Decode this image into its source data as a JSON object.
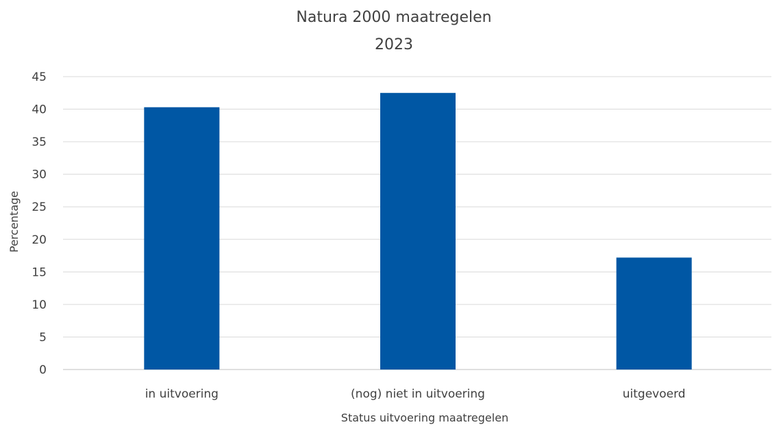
{
  "chart_data": {
    "type": "bar",
    "title": "Natura 2000 maatregelen",
    "subtitle": "2023",
    "xlabel": "Status uitvoering maatregelen",
    "ylabel": "Percentage",
    "categories": [
      "in uitvoering",
      "(nog) niet in uitvoering",
      "uitgevoerd"
    ],
    "values": [
      40.3,
      42.5,
      17.2
    ],
    "ylim": [
      0,
      45
    ],
    "yticks": [
      0,
      5,
      10,
      15,
      20,
      25,
      30,
      35,
      40,
      45
    ],
    "grid": true,
    "bar_color": "#0057A4"
  }
}
